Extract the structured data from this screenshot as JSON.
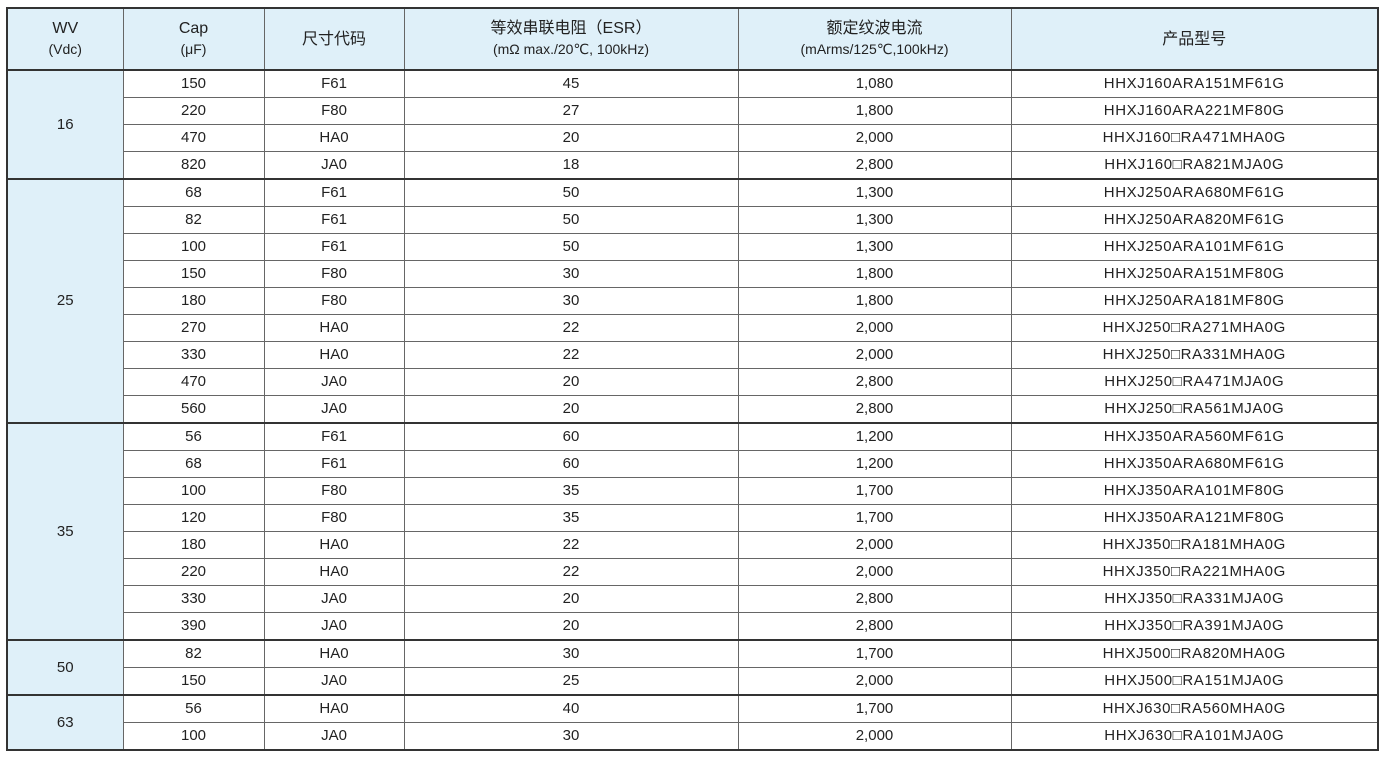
{
  "header": {
    "wv": "WV",
    "wv_unit": "(Vdc)",
    "cap": "Cap",
    "cap_unit": "(μF)",
    "size": "尺寸代码",
    "esr": "等效串联电阻（ESR）",
    "esr_unit": "(mΩ max./20℃, 100kHz)",
    "ripple": "额定纹波电流",
    "ripple_unit": "(mArms/125℃,100kHz)",
    "part": "产品型号"
  },
  "groups": [
    {
      "wv": "16",
      "rows": [
        [
          "150",
          "F61",
          "45",
          "1,080",
          "HHXJ160ARA151MF61G"
        ],
        [
          "220",
          "F80",
          "27",
          "1,800",
          "HHXJ160ARA221MF80G"
        ],
        [
          "470",
          "HA0",
          "20",
          "2,000",
          "HHXJ160□RA471MHA0G"
        ],
        [
          "820",
          "JA0",
          "18",
          "2,800",
          "HHXJ160□RA821MJA0G"
        ]
      ]
    },
    {
      "wv": "25",
      "rows": [
        [
          "68",
          "F61",
          "50",
          "1,300",
          "HHXJ250ARA680MF61G"
        ],
        [
          "82",
          "F61",
          "50",
          "1,300",
          "HHXJ250ARA820MF61G"
        ],
        [
          "100",
          "F61",
          "50",
          "1,300",
          "HHXJ250ARA101MF61G"
        ],
        [
          "150",
          "F80",
          "30",
          "1,800",
          "HHXJ250ARA151MF80G"
        ],
        [
          "180",
          "F80",
          "30",
          "1,800",
          "HHXJ250ARA181MF80G"
        ],
        [
          "270",
          "HA0",
          "22",
          "2,000",
          "HHXJ250□RA271MHA0G"
        ],
        [
          "330",
          "HA0",
          "22",
          "2,000",
          "HHXJ250□RA331MHA0G"
        ],
        [
          "470",
          "JA0",
          "20",
          "2,800",
          "HHXJ250□RA471MJA0G"
        ],
        [
          "560",
          "JA0",
          "20",
          "2,800",
          "HHXJ250□RA561MJA0G"
        ]
      ]
    },
    {
      "wv": "35",
      "rows": [
        [
          "56",
          "F61",
          "60",
          "1,200",
          "HHXJ350ARA560MF61G"
        ],
        [
          "68",
          "F61",
          "60",
          "1,200",
          "HHXJ350ARA680MF61G"
        ],
        [
          "100",
          "F80",
          "35",
          "1,700",
          "HHXJ350ARA101MF80G"
        ],
        [
          "120",
          "F80",
          "35",
          "1,700",
          "HHXJ350ARA121MF80G"
        ],
        [
          "180",
          "HA0",
          "22",
          "2,000",
          "HHXJ350□RA181MHA0G"
        ],
        [
          "220",
          "HA0",
          "22",
          "2,000",
          "HHXJ350□RA221MHA0G"
        ],
        [
          "330",
          "JA0",
          "20",
          "2,800",
          "HHXJ350□RA331MJA0G"
        ],
        [
          "390",
          "JA0",
          "20",
          "2,800",
          "HHXJ350□RA391MJA0G"
        ]
      ]
    },
    {
      "wv": "50",
      "rows": [
        [
          "82",
          "HA0",
          "30",
          "1,700",
          "HHXJ500□RA820MHA0G"
        ],
        [
          "150",
          "JA0",
          "25",
          "2,000",
          "HHXJ500□RA151MJA0G"
        ]
      ]
    },
    {
      "wv": "63",
      "rows": [
        [
          "56",
          "HA0",
          "40",
          "1,700",
          "HHXJ630□RA560MHA0G"
        ],
        [
          "100",
          "JA0",
          "30",
          "2,000",
          "HHXJ630□RA101MJA0G"
        ]
      ]
    }
  ]
}
